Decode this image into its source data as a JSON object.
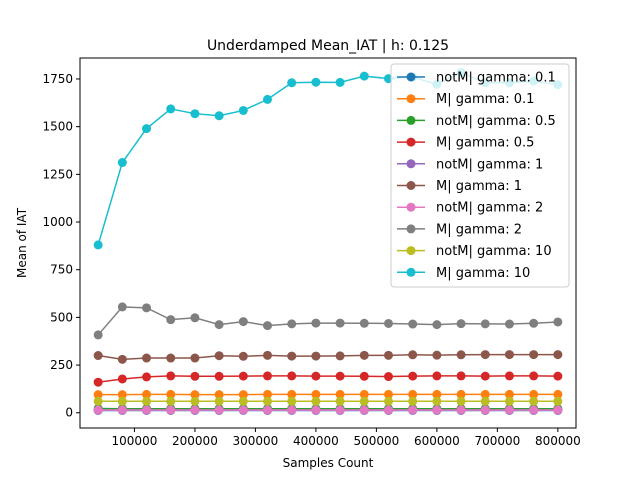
{
  "chart_data": {
    "type": "line",
    "title": "Underdamped Mean_IAT   | h: 0.125",
    "xlabel": "Samples Count",
    "ylabel": "Mean of IAT",
    "xlim": [
      10000,
      830000
    ],
    "ylim": [
      -80,
      1860
    ],
    "xticks": [
      100000,
      200000,
      300000,
      400000,
      500000,
      600000,
      700000,
      800000
    ],
    "xtick_labels": [
      "100000",
      "200000",
      "300000",
      "400000",
      "500000",
      "600000",
      "700000",
      "800000"
    ],
    "yticks": [
      0,
      250,
      500,
      750,
      1000,
      1250,
      1500,
      1750
    ],
    "ytick_labels": [
      "0",
      "250",
      "500",
      "750",
      "1000",
      "1250",
      "1500",
      "1750"
    ],
    "grid": false,
    "legend_position": "top-right",
    "marker": "circle",
    "x": [
      40000,
      80000,
      120000,
      160000,
      200000,
      240000,
      280000,
      320000,
      360000,
      400000,
      440000,
      480000,
      520000,
      560000,
      600000,
      640000,
      680000,
      720000,
      760000,
      800000
    ],
    "series": [
      {
        "name": "notM| gamma: 0.1",
        "color": "#1f77b4",
        "values": [
          12,
          12,
          12,
          12,
          12,
          12,
          12,
          12,
          12,
          12,
          12,
          12,
          12,
          12,
          12,
          12,
          12,
          12,
          12,
          12
        ]
      },
      {
        "name": "M| gamma: 0.1",
        "color": "#ff7f0e",
        "values": [
          95,
          95,
          96,
          96,
          95,
          95,
          95,
          96,
          96,
          96,
          96,
          96,
          96,
          96,
          96,
          96,
          96,
          96,
          96,
          96
        ]
      },
      {
        "name": "notM| gamma: 0.5",
        "color": "#2ca02c",
        "values": [
          22,
          21,
          21,
          21,
          21,
          21,
          21,
          21,
          21,
          21,
          21,
          21,
          21,
          21,
          21,
          21,
          21,
          21,
          21,
          21
        ]
      },
      {
        "name": "M| gamma: 0.5",
        "color": "#d62728",
        "values": [
          160,
          177,
          188,
          193,
          191,
          191,
          192,
          193,
          193,
          192,
          192,
          191,
          190,
          192,
          193,
          193,
          192,
          193,
          193,
          192
        ]
      },
      {
        "name": "notM| gamma: 1",
        "color": "#9467bd",
        "values": [
          15,
          15,
          15,
          15,
          15,
          15,
          15,
          15,
          15,
          15,
          15,
          15,
          15,
          15,
          15,
          15,
          15,
          15,
          15,
          15
        ]
      },
      {
        "name": "M| gamma: 1",
        "color": "#8c564b",
        "values": [
          300,
          280,
          287,
          287,
          287,
          299,
          296,
          301,
          297,
          297,
          298,
          301,
          301,
          304,
          302,
          304,
          305,
          305,
          305,
          305
        ]
      },
      {
        "name": "notM| gamma: 2",
        "color": "#e377c2",
        "values": [
          14,
          14,
          14,
          14,
          14,
          14,
          14,
          14,
          14,
          14,
          14,
          14,
          14,
          14,
          14,
          14,
          14,
          14,
          14,
          14
        ]
      },
      {
        "name": "M| gamma: 2",
        "color": "#7f7f7f",
        "values": [
          408,
          555,
          550,
          488,
          498,
          462,
          478,
          457,
          466,
          470,
          470,
          469,
          468,
          465,
          462,
          467,
          466,
          465,
          469,
          476
        ]
      },
      {
        "name": "notM| gamma: 10",
        "color": "#bcbd22",
        "values": [
          60,
          60,
          60,
          60,
          60,
          60,
          60,
          60,
          60,
          60,
          60,
          60,
          60,
          60,
          60,
          60,
          60,
          60,
          60,
          60
        ]
      },
      {
        "name": "M| gamma: 10",
        "color": "#17becf",
        "values": [
          880,
          1312,
          1490,
          1593,
          1568,
          1557,
          1585,
          1643,
          1730,
          1733,
          1732,
          1765,
          1752,
          1760,
          1722,
          1784,
          1730,
          1730,
          1739,
          1720
        ]
      }
    ]
  }
}
